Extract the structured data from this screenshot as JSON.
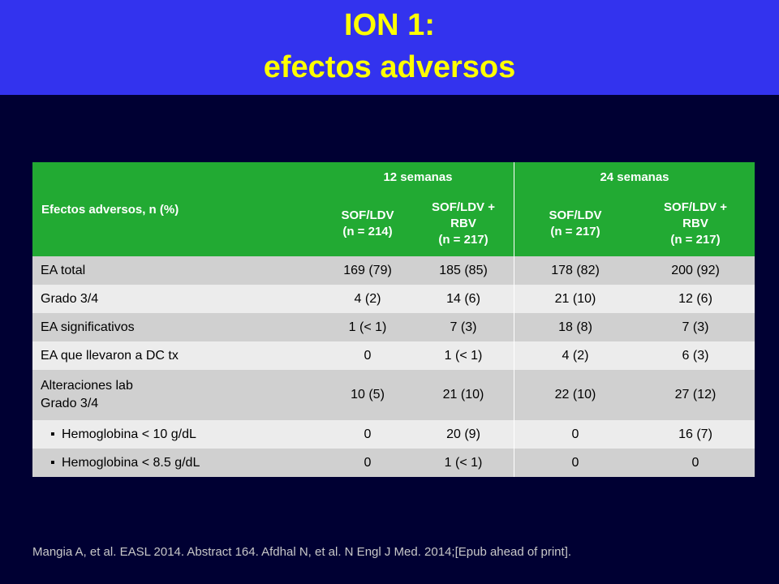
{
  "header": {
    "title_line1": "ION 1:",
    "title_line2": "efectos adversos"
  },
  "table": {
    "row_header": "Efectos adversos, n (%)",
    "groups": [
      "12 semanas",
      "24 semanas"
    ],
    "columns": [
      [
        "SOF/LDV",
        "(n = 214)"
      ],
      [
        "SOF/LDV +",
        "RBV",
        "(n = 217)"
      ],
      [
        "SOF/LDV",
        "(n = 217)"
      ],
      [
        "SOF/LDV +",
        "RBV",
        "(n = 217)"
      ]
    ],
    "bullet_glyph": "▪",
    "rows": [
      {
        "label": [
          "EA total"
        ],
        "values": [
          "169 (79)",
          "185 (85)",
          "178 (82)",
          "200 (92)"
        ],
        "bullet": false
      },
      {
        "label": [
          "Grado 3/4"
        ],
        "values": [
          "4 (2)",
          "14 (6)",
          "21 (10)",
          "12 (6)"
        ],
        "bullet": false
      },
      {
        "label": [
          "EA significativos"
        ],
        "values": [
          "1 (< 1)",
          "7 (3)",
          "18 (8)",
          "7 (3)"
        ],
        "bullet": false
      },
      {
        "label": [
          "EA que llevaron a DC tx"
        ],
        "values": [
          "0",
          "1 (< 1)",
          "4 (2)",
          "6 (3)"
        ],
        "bullet": false
      },
      {
        "label": [
          "Alteraciones lab",
          "Grado 3/4"
        ],
        "values": [
          "10 (5)",
          "21 (10)",
          "22 (10)",
          "27 (12)"
        ],
        "bullet": false
      },
      {
        "label": [
          "Hemoglobina < 10 g/dL"
        ],
        "values": [
          "0",
          "20 (9)",
          "0",
          "16 (7)"
        ],
        "bullet": true
      },
      {
        "label": [
          "Hemoglobina < 8.5 g/dL"
        ],
        "values": [
          "0",
          "1 (< 1)",
          "0",
          "0"
        ],
        "bullet": true
      }
    ]
  },
  "footnote": "Mangia A, et al. EASL 2014. Abstract 164. Afdhal N, et al. N Engl J Med. 2014;[Epub ahead of print].",
  "colors": {
    "background": "#000033",
    "header_bg": "#3333ee",
    "title": "#ffff00",
    "table_header_bg": "#22aa33",
    "row_odd": "#d0d0d0",
    "row_even": "#ececec"
  }
}
